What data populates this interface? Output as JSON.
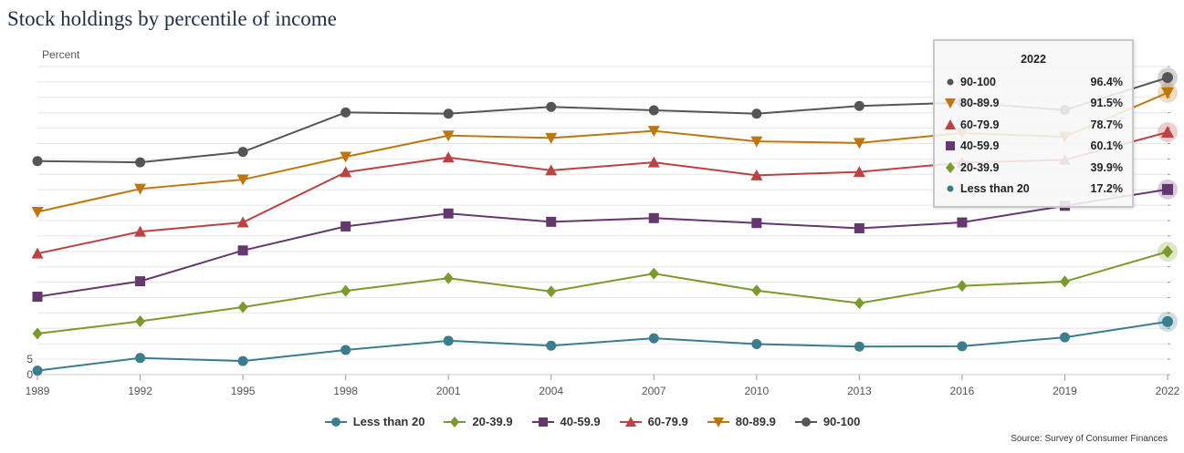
{
  "title": "Stock holdings by percentile of income",
  "source": "Source: Survey of Consumer Finances",
  "tooltip": {
    "year": "2022",
    "rows": [
      {
        "label": "90-100",
        "value": "96.4%"
      },
      {
        "label": "80-89.9",
        "value": "91.5%"
      },
      {
        "label": "60-79.9",
        "value": "78.7%"
      },
      {
        "label": "40-59.9",
        "value": "60.1%"
      },
      {
        "label": "20-39.9",
        "value": "39.9%"
      },
      {
        "label": "Less than 20",
        "value": "17.2%"
      }
    ]
  },
  "chart_data": {
    "type": "line",
    "title": "Stock holdings by percentile of income",
    "ylabel": "Percent",
    "xlabel": "",
    "x": [
      "1989",
      "1992",
      "1995",
      "1998",
      "2001",
      "2004",
      "2007",
      "2010",
      "2013",
      "2016",
      "2019",
      "2022"
    ],
    "ylim": [
      0,
      100
    ],
    "y_ticks_shown": [
      0,
      5
    ],
    "grid": true,
    "legend_position": "bottom",
    "series": [
      {
        "name": "Less than 20",
        "color": "#3a7d8c",
        "marker": "circle",
        "values": [
          1.3,
          5.4,
          4.4,
          8.0,
          11.0,
          9.4,
          11.8,
          9.9,
          9.1,
          9.2,
          12.1,
          17.2
        ]
      },
      {
        "name": "20-39.9",
        "color": "#7a9a2b",
        "marker": "diamond",
        "values": [
          13.3,
          17.3,
          21.9,
          27.2,
          31.3,
          27.0,
          32.8,
          27.3,
          23.2,
          28.8,
          30.2,
          39.9
        ]
      },
      {
        "name": "40-59.9",
        "color": "#65376f",
        "marker": "square",
        "values": [
          25.3,
          30.3,
          40.3,
          48.1,
          52.3,
          49.6,
          50.8,
          49.2,
          47.5,
          49.4,
          54.8,
          60.1
        ]
      },
      {
        "name": "60-79.9",
        "color": "#bd4141",
        "marker": "triangle-up",
        "values": [
          39.3,
          46.4,
          49.4,
          65.7,
          70.5,
          66.3,
          68.9,
          64.7,
          65.8,
          68.8,
          69.7,
          78.7
        ]
      },
      {
        "name": "80-89.9",
        "color": "#c0760f",
        "marker": "triangle-down",
        "values": [
          52.8,
          60.3,
          63.3,
          70.7,
          77.6,
          76.8,
          79.1,
          75.7,
          75.2,
          78.4,
          77.2,
          91.5
        ]
      },
      {
        "name": "90-100",
        "color": "#555555",
        "marker": "circle",
        "values": [
          69.3,
          68.9,
          72.3,
          85.1,
          84.7,
          86.9,
          85.8,
          84.7,
          87.2,
          88.3,
          85.9,
          96.4
        ]
      }
    ]
  }
}
